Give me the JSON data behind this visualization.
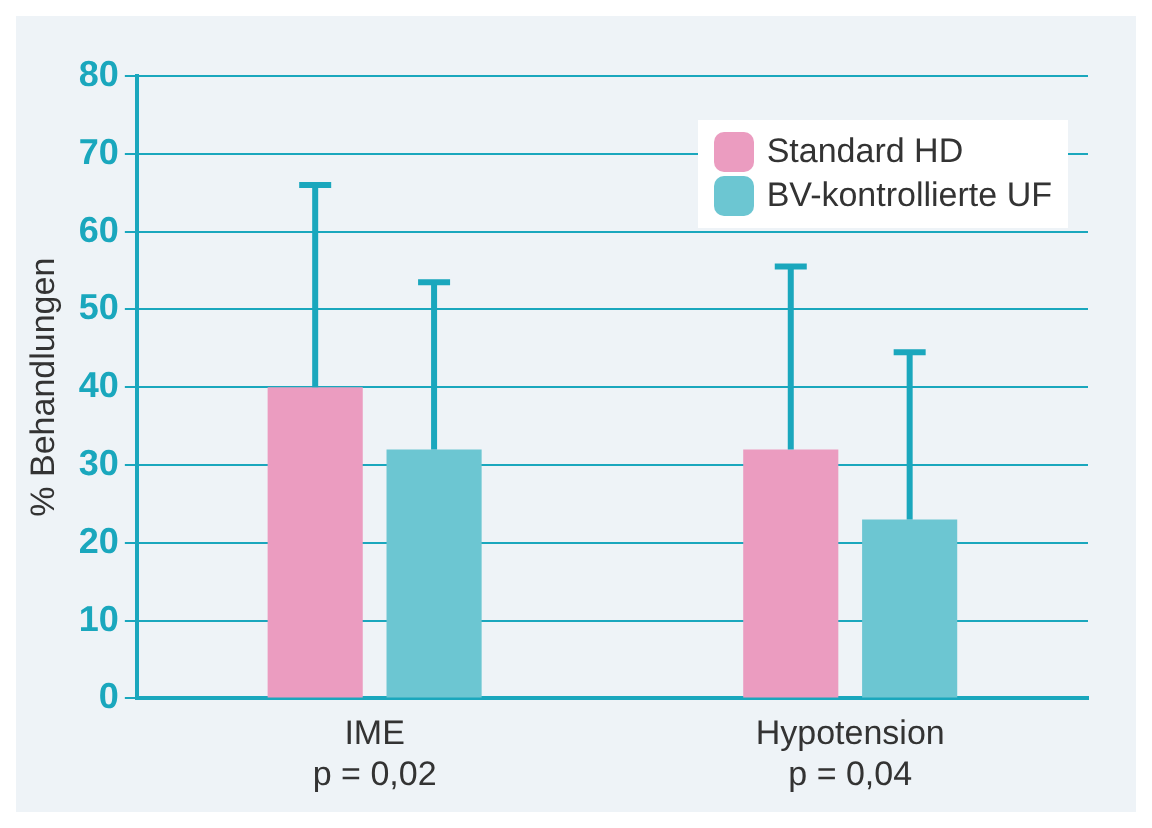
{
  "chart_data": {
    "type": "bar",
    "ylabel": "% Behandlungen",
    "categories": [
      "IME\np = 0,02",
      "Hypotension\np = 0,04"
    ],
    "series": [
      {
        "name": "Standard HD",
        "color": "#eb9cc0",
        "values": [
          40,
          32
        ],
        "errors": [
          [
            40,
            66
          ],
          [
            32,
            55.5
          ]
        ]
      },
      {
        "name": "BV-kontrollierte UF",
        "color": "#6cc6d2",
        "values": [
          32,
          23
        ],
        "errors": [
          [
            32,
            53.5
          ],
          [
            23,
            44.5
          ]
        ]
      }
    ],
    "ylim": [
      0,
      80
    ],
    "yticks": [
      0,
      10,
      20,
      30,
      40,
      50,
      60,
      70,
      80
    ],
    "grid": "y",
    "legend": "top right"
  }
}
